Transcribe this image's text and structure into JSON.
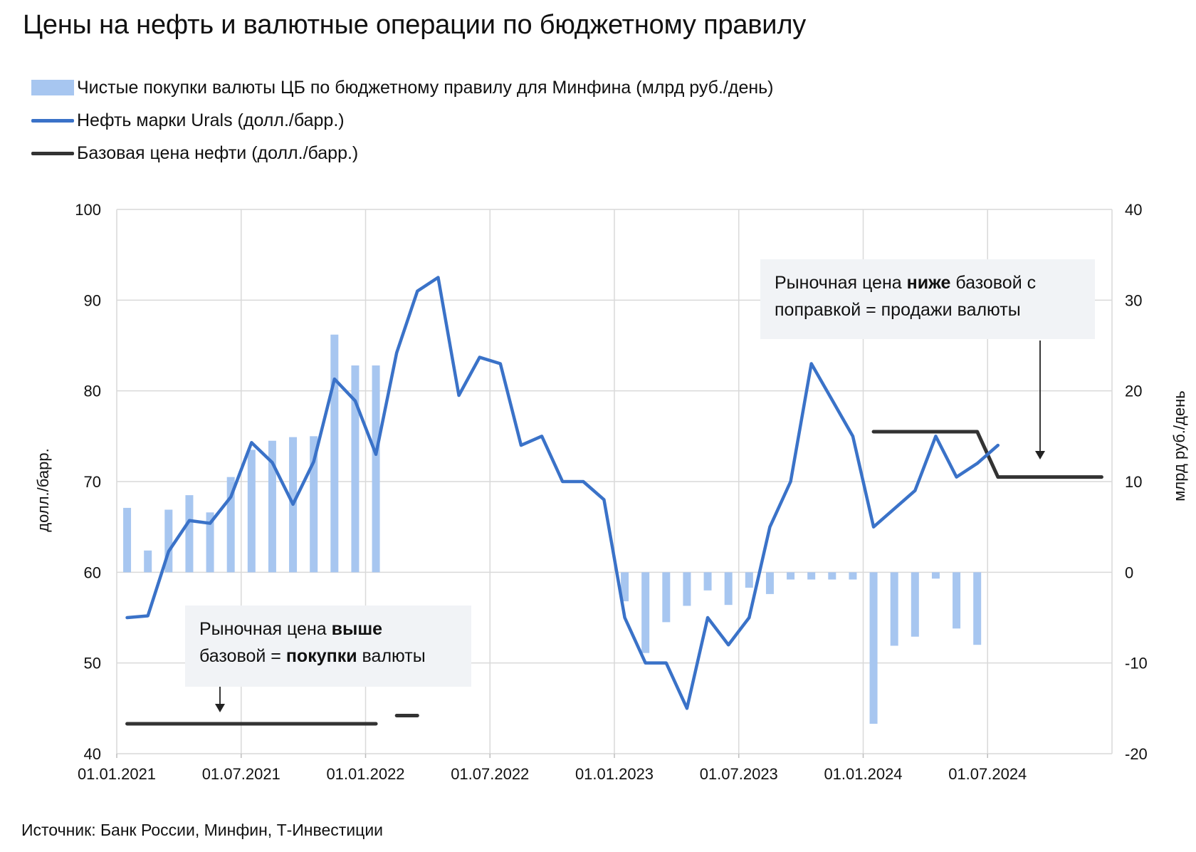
{
  "title": "Цены на нефть и валютные операции по бюджетному правилу",
  "legend": [
    {
      "label": "Чистые покупки валюты ЦБ по бюджетному правилу для Минфина (млрд руб./день)",
      "kind": "bar",
      "color": "#a7c6f0"
    },
    {
      "label": "Нефть марки Urals (долл./барр.)",
      "kind": "line",
      "color": "#3a72c8"
    },
    {
      "label": "Базовая цена нефти (долл./барр.)",
      "kind": "line",
      "color": "#333333"
    }
  ],
  "source": "Источник: Банк России, Минфин, Т-Инвестиции",
  "notes": {
    "upper": {
      "part1": "Рыночная цена ",
      "bold1": "ниже",
      "part2": " базовой с поправкой = продажи валюты",
      "bold2": "",
      "part3": ""
    },
    "lower": {
      "part1": "Рыночная цена ",
      "bold1": "выше",
      "part2": " базовой = ",
      "bold2": "покупки",
      "part3": " валюты"
    }
  },
  "chart_data": {
    "type": "bar+line",
    "xlabel": "",
    "ylabel_left": "долл./барр.",
    "ylabel_right": "млрд руб./день",
    "ylim_left": [
      40,
      100
    ],
    "ylim_right": [
      -20,
      40
    ],
    "yticks_left": [
      "40",
      "50",
      "60",
      "70",
      "80",
      "90",
      "100"
    ],
    "yticks_right": [
      "-20",
      "-10",
      "0",
      "10",
      "20",
      "30",
      "40"
    ],
    "xticks": [
      "01.01.2021",
      "01.07.2021",
      "01.01.2022",
      "01.07.2022",
      "01.01.2023",
      "01.07.2023",
      "01.01.2024",
      "01.07.2024"
    ],
    "months": [
      "2021-01",
      "2021-02",
      "2021-03",
      "2021-04",
      "2021-05",
      "2021-06",
      "2021-07",
      "2021-08",
      "2021-09",
      "2021-10",
      "2021-11",
      "2021-12",
      "2022-01",
      "2022-02",
      "2022-03",
      "2022-04",
      "2022-05",
      "2022-06",
      "2022-07",
      "2022-08",
      "2022-09",
      "2022-10",
      "2022-11",
      "2022-12",
      "2023-01",
      "2023-02",
      "2023-03",
      "2023-04",
      "2023-05",
      "2023-06",
      "2023-07",
      "2023-08",
      "2023-09",
      "2023-10",
      "2023-11",
      "2023-12",
      "2024-01",
      "2024-02",
      "2024-03",
      "2024-04",
      "2024-05",
      "2024-06",
      "2024-07",
      "2024-08",
      "2024-09",
      "2024-10",
      "2024-11",
      "2024-12"
    ],
    "series": [
      {
        "name": "Чистые покупки валюты ЦБ по бюджетному правилу для Минфина (млрд руб./день)",
        "axis": "right",
        "kind": "bar",
        "values": [
          7.1,
          2.4,
          6.9,
          8.5,
          6.6,
          10.5,
          13.5,
          14.5,
          14.9,
          15.0,
          26.2,
          22.8,
          22.8,
          null,
          null,
          null,
          null,
          null,
          null,
          null,
          null,
          null,
          null,
          null,
          -3.2,
          -8.9,
          -5.5,
          -3.7,
          -2.0,
          -3.6,
          -1.7,
          -2.4,
          -0.8,
          -0.8,
          -0.8,
          -0.8,
          -16.7,
          -8.1,
          -7.1,
          -0.7,
          -6.2,
          -8.0,
          null,
          null,
          null,
          null,
          null,
          null
        ]
      },
      {
        "name": "Нефть марки Urals (долл./барр.)",
        "axis": "left",
        "kind": "line",
        "values": [
          55.0,
          55.2,
          62.3,
          65.7,
          65.4,
          68.3,
          74.3,
          72.1,
          67.5,
          72.2,
          81.3,
          78.9,
          73.0,
          84.2,
          91.0,
          92.5,
          79.5,
          83.7,
          83.0,
          74.0,
          75.0,
          70.0,
          70.0,
          68.0,
          55.0,
          50.0,
          50.0,
          45.0,
          55.0,
          52.0,
          55.0,
          65.0,
          70.0,
          83.0,
          79.0,
          75.0,
          65.0,
          67.0,
          69.0,
          75.0,
          70.5,
          72.0,
          74.0,
          null,
          null,
          null,
          null,
          null
        ]
      },
      {
        "name": "Базовая цена нефти (долл./барр.)",
        "axis": "left",
        "kind": "line",
        "segments": [
          {
            "x": [
              "2021-01",
              "2022-01"
            ],
            "y": [
              43.3,
              43.3
            ]
          },
          {
            "x": [
              "2022-02",
              "2022-03"
            ],
            "y": [
              44.2,
              44.2
            ]
          },
          {
            "x": [
              "2024-01",
              "2024-06",
              "2024-07",
              "2024-12"
            ],
            "y": [
              75.5,
              75.5,
              70.5,
              70.5
            ]
          }
        ]
      }
    ]
  }
}
